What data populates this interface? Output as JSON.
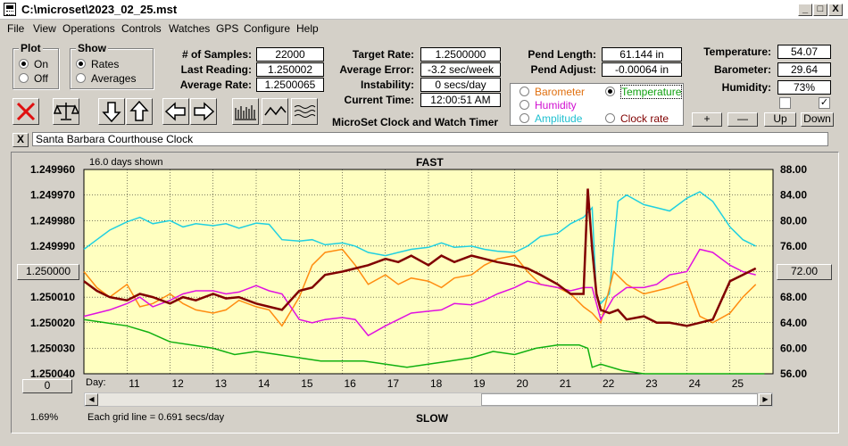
{
  "window": {
    "title": "C:\\microset\\2023_02_25.mst",
    "min": "_",
    "max": "□",
    "close": "X"
  },
  "menu": [
    "File",
    "View",
    "Operations",
    "Controls",
    "Watches",
    "GPS",
    "Configure",
    "Help"
  ],
  "plot_group": {
    "title": "Plot",
    "on": "On",
    "off": "Off"
  },
  "show_group": {
    "title": "Show",
    "rates": "Rates",
    "averages": "Averages"
  },
  "stats": {
    "samples_label": "# of Samples:",
    "samples": "22000",
    "last_label": "Last Reading:",
    "last": "1.250002",
    "avg_label": "Average Rate:",
    "avg": "1.2500065",
    "target_label": "Target Rate:",
    "target": "1.2500000",
    "avgerr_label": "Average Error:",
    "avgerr": "-3.2 sec/week",
    "instab_label": "Instability:",
    "instab": "0 secs/day",
    "time_label": "Current Time:",
    "time": "12:00:51 AM",
    "pendlen_label": "Pend Length:",
    "pendlen": "61.144 in",
    "pendadj_label": "Pend Adjust:",
    "pendadj": "-0.00064 in",
    "temp_label": "Temperature:",
    "temp": "54.07",
    "baro_label": "Barometer:",
    "baro": "29.64",
    "humid_label": "Humidity:",
    "humid": "73%"
  },
  "app_name": "MicroSet Clock and Watch Timer",
  "sensor_select": {
    "barometer": "Barometer",
    "temperature": "Temperature",
    "humidity": "Humidity",
    "amplitude": "Amplitude",
    "clock_rate": "Clock rate",
    "colors": {
      "barometer": "#e07010",
      "temperature": "#10a010",
      "humidity": "#d010d0",
      "amplitude": "#20c0d0",
      "clock_rate": "#800000"
    }
  },
  "adjust_buttons": {
    "plus": "+",
    "minus": "—",
    "up": "Up",
    "down": "Down"
  },
  "watch": {
    "close": "X",
    "name": "Santa Barbara Courthouse Clock"
  },
  "graph": {
    "days_shown": "16.0 days shown",
    "fast": "FAST",
    "slow": "SLOW",
    "day_label": "Day:",
    "grid_note": "Each grid line = 0.691 secs/day",
    "center_rate": "1.250000",
    "zero_button": "0",
    "right_value": "72.00",
    "percent": "1.69%"
  },
  "chart_data": {
    "type": "line",
    "y_left_ticks": [
      "1.249960",
      "1.249970",
      "1.249980",
      "1.249990",
      "1.250000",
      "1.250010",
      "1.250020",
      "1.250030",
      "1.250040"
    ],
    "y_left_range": [
      1.24996,
      1.25004
    ],
    "y_left_inverted": true,
    "y_right_ticks": [
      "88.00",
      "84.00",
      "80.00",
      "76.00",
      "72.00",
      "68.00",
      "64.00",
      "60.00",
      "56.00"
    ],
    "y_right_range": [
      56,
      88
    ],
    "x_ticks": [
      "11",
      "12",
      "13",
      "14",
      "15",
      "16",
      "17",
      "18",
      "19",
      "20",
      "21",
      "22",
      "23",
      "24",
      "25"
    ],
    "x_range": [
      10,
      26
    ],
    "grid": true,
    "series": [
      {
        "color": "#20d0e0",
        "x": [
          10.0,
          10.3,
          10.6,
          11.0,
          11.3,
          11.6,
          12.0,
          12.3,
          12.6,
          13.0,
          13.3,
          13.6,
          14.0,
          14.3,
          14.6,
          15.0,
          15.3,
          15.6,
          16.0,
          16.3,
          16.6,
          17.0,
          17.3,
          17.6,
          18.0,
          18.3,
          18.6,
          19.0,
          19.3,
          19.6,
          20.0,
          20.3,
          20.6,
          21.0,
          21.3,
          21.6,
          21.8,
          21.9,
          22.0,
          22.2,
          22.4,
          22.6,
          23.0,
          23.3,
          23.6,
          24.0,
          24.3,
          24.6,
          25.0,
          25.3,
          25.6
        ],
        "y": [
          75.5,
          77.0,
          78.5,
          79.8,
          80.5,
          79.5,
          80.0,
          79.0,
          79.5,
          79.2,
          79.5,
          78.8,
          79.6,
          79.4,
          77.0,
          76.8,
          77.0,
          76.2,
          76.5,
          76.0,
          75.0,
          74.5,
          75.0,
          75.5,
          75.8,
          76.5,
          75.8,
          76.0,
          75.5,
          75.2,
          75.0,
          76.0,
          77.5,
          78.0,
          79.5,
          80.5,
          82.0,
          68.0,
          67.0,
          68.5,
          83.0,
          84.0,
          82.5,
          82.0,
          81.5,
          83.5,
          84.5,
          83.0,
          79.0,
          77.0,
          76.0
        ]
      },
      {
        "color": "#ff8c10",
        "x": [
          10.0,
          10.3,
          10.6,
          11.0,
          11.3,
          11.6,
          12.0,
          12.3,
          12.6,
          13.0,
          13.3,
          13.6,
          14.0,
          14.3,
          14.6,
          15.0,
          15.3,
          15.6,
          16.0,
          16.3,
          16.6,
          17.0,
          17.3,
          17.6,
          18.0,
          18.3,
          18.6,
          19.0,
          19.3,
          19.6,
          20.0,
          20.3,
          20.6,
          21.0,
          21.3,
          21.6,
          21.8,
          22.0,
          22.3,
          22.6,
          23.0,
          23.3,
          23.6,
          24.0,
          24.3,
          24.6,
          25.0,
          25.3,
          25.6
        ],
        "y": [
          72.0,
          69.5,
          68.0,
          70.0,
          66.5,
          67.0,
          68.5,
          67.0,
          66.0,
          65.5,
          66.0,
          67.5,
          66.5,
          66.0,
          63.5,
          68.0,
          73.0,
          75.0,
          75.5,
          73.0,
          70.0,
          71.5,
          70.0,
          71.0,
          70.5,
          69.5,
          71.0,
          71.5,
          73.0,
          74.0,
          74.5,
          72.0,
          70.0,
          69.5,
          68.5,
          66.5,
          65.5,
          64.0,
          72.0,
          70.0,
          68.5,
          69.0,
          69.5,
          70.5,
          65.0,
          64.0,
          65.5,
          68.0,
          70.0
        ]
      },
      {
        "color": "#e010e0",
        "x": [
          10.0,
          10.3,
          10.6,
          11.0,
          11.3,
          11.6,
          12.0,
          12.3,
          12.6,
          13.0,
          13.3,
          13.6,
          14.0,
          14.3,
          14.6,
          15.0,
          15.3,
          15.6,
          16.0,
          16.3,
          16.6,
          17.0,
          17.3,
          17.6,
          18.0,
          18.3,
          18.6,
          19.0,
          19.3,
          19.6,
          20.0,
          20.3,
          20.6,
          21.0,
          21.3,
          21.6,
          21.8,
          22.0,
          22.3,
          22.6,
          23.0,
          23.3,
          23.6,
          24.0,
          24.3,
          24.6,
          25.0,
          25.3,
          25.6
        ],
        "y": [
          65.0,
          65.5,
          66.0,
          67.0,
          68.0,
          66.5,
          67.5,
          68.5,
          69.0,
          69.0,
          68.5,
          68.8,
          69.8,
          69.0,
          68.5,
          64.5,
          64.0,
          64.5,
          64.8,
          64.5,
          62.0,
          63.5,
          64.5,
          65.5,
          65.8,
          66.0,
          67.0,
          66.8,
          67.5,
          68.5,
          69.5,
          70.5,
          70.0,
          69.5,
          69.0,
          69.5,
          69.5,
          64.5,
          68.0,
          69.5,
          69.5,
          70.0,
          71.5,
          72.0,
          75.5,
          75.0,
          73.0,
          72.0,
          71.5
        ]
      },
      {
        "color": "#10b010",
        "x": [
          10.0,
          10.5,
          11.0,
          11.5,
          12.0,
          12.5,
          13.0,
          13.5,
          14.0,
          14.5,
          15.0,
          15.5,
          16.0,
          16.5,
          17.0,
          17.5,
          18.0,
          18.5,
          19.0,
          19.5,
          20.0,
          20.5,
          21.0,
          21.5,
          21.7,
          21.8,
          22.0,
          22.5,
          23.0,
          24.0,
          25.0,
          25.8
        ],
        "y": [
          64.5,
          64.0,
          63.5,
          62.5,
          61.0,
          60.5,
          60.0,
          59.0,
          59.5,
          59.0,
          58.5,
          58.0,
          58.0,
          58.0,
          57.5,
          57.0,
          57.5,
          58.0,
          58.5,
          59.5,
          59.0,
          60.0,
          60.5,
          60.5,
          60.0,
          57.0,
          57.5,
          56.5,
          56.0,
          56.0,
          56.0,
          56.0
        ]
      },
      {
        "color": "#800000",
        "x": [
          10.0,
          10.3,
          10.6,
          11.0,
          11.3,
          11.6,
          12.0,
          12.3,
          12.6,
          13.0,
          13.3,
          13.6,
          14.0,
          14.3,
          14.6,
          15.0,
          15.3,
          15.6,
          16.0,
          16.3,
          16.6,
          17.0,
          17.3,
          17.6,
          18.0,
          18.3,
          18.6,
          19.0,
          19.3,
          19.6,
          20.0,
          20.3,
          20.6,
          21.0,
          21.3,
          21.6,
          21.7,
          21.8,
          21.9,
          22.0,
          22.2,
          22.4,
          22.6,
          23.0,
          23.3,
          23.6,
          24.0,
          24.3,
          24.6,
          25.0,
          25.3,
          25.6
        ],
        "y": [
          70.5,
          69.0,
          68.0,
          67.5,
          68.5,
          68.0,
          67.0,
          68.0,
          67.5,
          68.5,
          67.8,
          68.0,
          67.0,
          66.5,
          66.0,
          69.0,
          69.5,
          71.5,
          72.0,
          72.5,
          73.0,
          74.0,
          73.5,
          74.5,
          73.0,
          74.5,
          73.5,
          74.5,
          74.0,
          73.5,
          73.0,
          72.5,
          71.5,
          70.0,
          68.5,
          68.5,
          85.0,
          75.5,
          68.5,
          66.0,
          65.5,
          66.0,
          64.5,
          65.0,
          64.0,
          64.0,
          63.5,
          64.0,
          64.5,
          70.5,
          71.5,
          72.5
        ]
      }
    ]
  }
}
